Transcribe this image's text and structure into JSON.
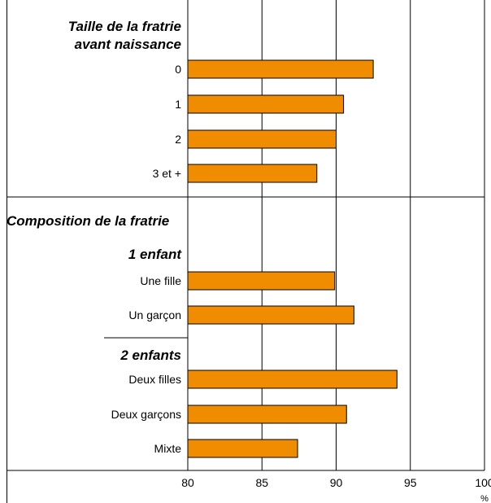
{
  "chart_data": {
    "type": "bar",
    "orientation": "horizontal",
    "xlim": [
      80,
      100
    ],
    "x_ticks": [
      "80",
      "85",
      "90",
      "95",
      "100"
    ],
    "xlabel": "%",
    "grid": true,
    "colors": {
      "bar": "#F08C00",
      "bar_stroke": "#000000",
      "grid": "#000000"
    },
    "groups": [
      {
        "title": "Taille de la fratrie avant naissance",
        "title_lines": [
          "Taille de la fratrie",
          "avant naissance"
        ],
        "bars": [
          {
            "label": "0",
            "value": 92.5
          },
          {
            "label": "1",
            "value": 90.5
          },
          {
            "label": "2",
            "value": 90.0
          },
          {
            "label": "3 et +",
            "value": 88.7
          }
        ]
      },
      {
        "title": "Composition de la fratrie",
        "subgroups": [
          {
            "title": "1 enfant",
            "bars": [
              {
                "label": "Une fille",
                "value": 89.9
              },
              {
                "label": "Un garçon",
                "value": 91.2
              }
            ]
          },
          {
            "title": "2 enfants",
            "bars": [
              {
                "label": "Deux filles",
                "value": 94.1
              },
              {
                "label": "Deux garçons",
                "value": 90.7
              },
              {
                "label": "Mixte",
                "value": 87.4
              }
            ]
          }
        ]
      }
    ]
  }
}
